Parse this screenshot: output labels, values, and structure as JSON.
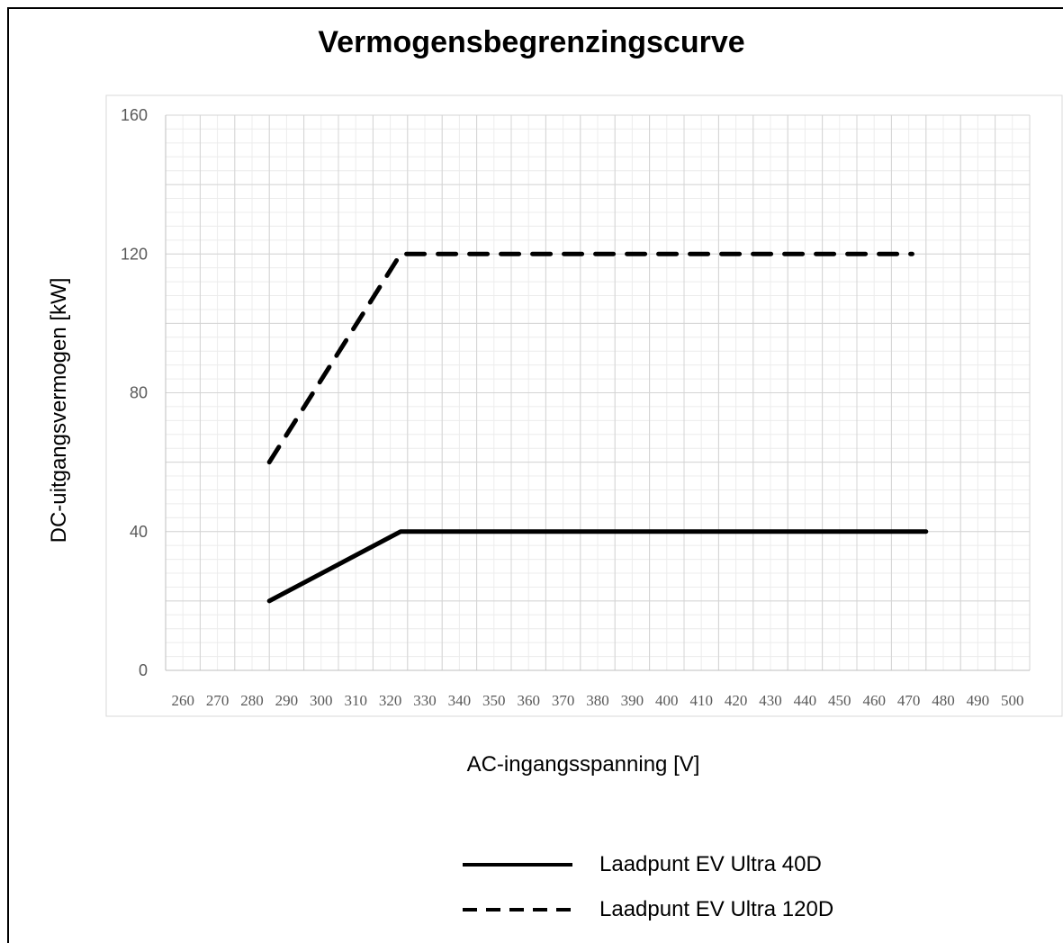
{
  "chart_data": {
    "type": "line",
    "title": "Vermogensbegrenzingscurve",
    "xlabel": "AC-ingangsspanning [V]",
    "ylabel": "DC-uitgangsvermogen [kW]",
    "xlim": [
      255,
      505
    ],
    "ylim": [
      0,
      160
    ],
    "x_ticks": [
      260,
      270,
      280,
      290,
      300,
      310,
      320,
      330,
      340,
      350,
      360,
      370,
      380,
      390,
      400,
      410,
      420,
      430,
      440,
      450,
      460,
      470,
      480,
      490,
      500
    ],
    "y_ticks": [
      0,
      40,
      80,
      120,
      160
    ],
    "grid": true,
    "legend_position": "bottom",
    "series": [
      {
        "name": "Laadpunt EV Ultra 40D",
        "style": "solid",
        "color": "#000000",
        "x": [
          285,
          323,
          475
        ],
        "y": [
          20,
          40,
          40
        ]
      },
      {
        "name": "Laadpunt EV Ultra 120D",
        "style": "dashed",
        "color": "#000000",
        "x": [
          285,
          323,
          471
        ],
        "y": [
          60,
          120,
          120
        ]
      }
    ]
  }
}
